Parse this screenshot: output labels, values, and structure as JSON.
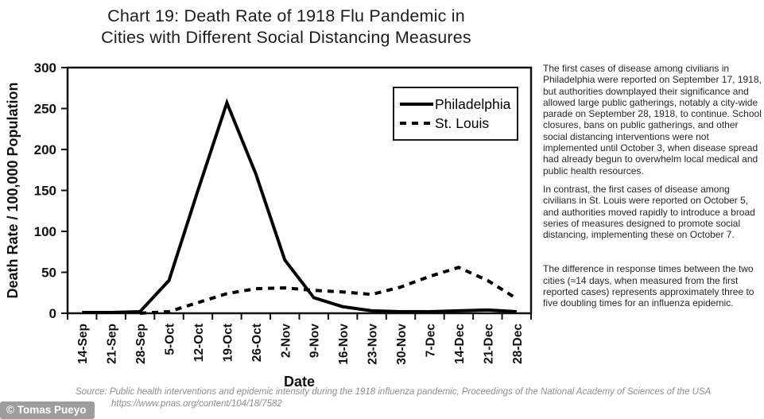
{
  "title": {
    "line1": "Chart 19: Death Rate of 1918 Flu Pandemic in",
    "line2": "Cities with Different Social Distancing Measures"
  },
  "chart_data": {
    "type": "line",
    "xlabel": "Date",
    "ylabel": "Death Rate / 100,000 Population",
    "ylim": [
      0,
      300
    ],
    "yticks": [
      0,
      50,
      100,
      150,
      200,
      250,
      300
    ],
    "categories": [
      "14-Sep",
      "21-Sep",
      "28-Sep",
      "5-Oct",
      "12-Oct",
      "19-Oct",
      "26-Oct",
      "2-Nov",
      "9-Nov",
      "16-Nov",
      "23-Nov",
      "30-Nov",
      "7-Dec",
      "14-Dec",
      "21-Dec",
      "28-Dec"
    ],
    "series": [
      {
        "name": "Philadelphia",
        "style": "solid",
        "values": [
          1,
          1,
          2,
          40,
          150,
          257,
          170,
          65,
          19,
          8,
          3,
          2,
          2,
          3,
          4,
          2
        ]
      },
      {
        "name": "St. Louis",
        "style": "dashed",
        "values": [
          null,
          null,
          0,
          2,
          13,
          24,
          30,
          31,
          28,
          26,
          23,
          32,
          45,
          56,
          40,
          18
        ]
      }
    ],
    "legend_position": "top-right-inside",
    "grid": false
  },
  "sidebar_text": {
    "p1": "The first cases of disease among civilians in Philadelphia were reported on September 17, 1918, but authorities downplayed their significance and allowed large public gatherings, notably a city-wide parade on September 28, 1918, to continue. School closures, bans on public gatherings, and other social distancing interventions were not implemented until October 3, when disease spread had already begun to overwhelm local medical and public health resources.",
    "p2": "In contrast, the first cases of disease among civilians in St. Louis were reported on October 5, and authorities moved rapidly to introduce a broad series of measures designed to promote social distancing, implementing these on October 7.",
    "p3": "The difference in response times between the two cities (≈14 days, when measured from the first reported cases) represents approximately three to five doubling times for an influenza epidemic."
  },
  "source": {
    "line1": "Source: Public health interventions and epidemic intensity during the 1918 influenza pandemic, Proceedings of the National Academy of Sciences of the USA",
    "line2": "https://www.pnas.org/content/104/18/7582"
  },
  "watermark": "© Tomas Pueyo",
  "colors": {
    "line": "#000000",
    "axis": "#1a1a1a",
    "source_text": "#8d8d8d",
    "watermark_bg": "#9d9d9d",
    "watermark_text": "#ffffff"
  }
}
